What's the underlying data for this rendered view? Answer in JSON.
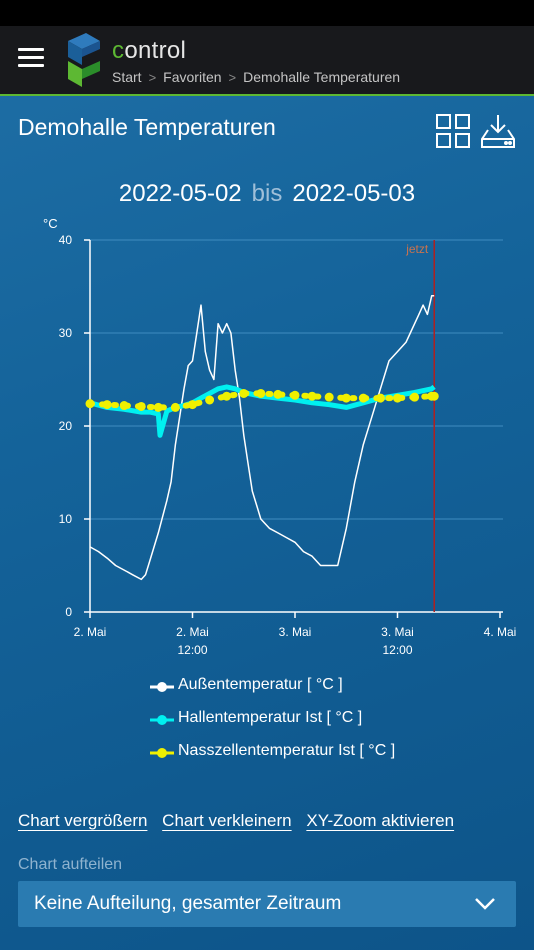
{
  "app": {
    "title_first_letter": "c",
    "title_rest": "ontrol",
    "breadcrumb": [
      "Start",
      "Favoriten",
      "Demohalle Temperaturen"
    ],
    "accent_color": "#5db833"
  },
  "page": {
    "title": "Demohalle Temperaturen",
    "toolbar_icons": [
      "grid-view-icon",
      "download-icon"
    ]
  },
  "date_range": {
    "from": "2022-05-02",
    "separator": "bis",
    "to": "2022-05-03"
  },
  "chart_data": {
    "type": "line",
    "ylabel": "°C",
    "ylim": [
      0,
      40
    ],
    "yticks": [
      "0",
      "10",
      "20",
      "30",
      "40"
    ],
    "x_unit": "hours since 2. Mai 00:00",
    "xlim": [
      0,
      48
    ],
    "xticks": [
      {
        "x": 0,
        "line1": "2. Mai",
        "line2": ""
      },
      {
        "x": 12,
        "line1": "2. Mai",
        "line2": "12:00"
      },
      {
        "x": 24,
        "line1": "3. Mai",
        "line2": ""
      },
      {
        "x": 36,
        "line1": "3. Mai",
        "line2": "12:00"
      },
      {
        "x": 48,
        "line1": "4. Mai",
        "line2": ""
      }
    ],
    "grid": true,
    "now_marker": {
      "x": 40.3,
      "label": "jetzt",
      "color": "#b02020"
    },
    "series": [
      {
        "name": "Außentemperatur [ °C ]",
        "color": "#ffffff",
        "style": "line",
        "x": [
          0,
          1,
          2,
          3,
          4,
          5,
          6,
          6.5,
          7,
          8,
          9,
          9.5,
          10,
          10.5,
          11,
          11.5,
          12,
          12.5,
          13,
          13.5,
          14,
          14.5,
          15,
          15.5,
          16,
          16.5,
          17,
          17.5,
          18,
          18.5,
          19,
          19.5,
          20,
          21,
          22,
          23,
          24,
          25,
          26,
          27,
          28,
          29,
          30,
          31,
          32,
          33,
          34,
          35,
          36,
          37,
          37.5,
          38,
          38.5,
          39,
          39.5,
          40,
          40.3
        ],
        "y": [
          7,
          6.5,
          5.8,
          5,
          4.5,
          4,
          3.5,
          4,
          5.5,
          8.5,
          12,
          14,
          18,
          21,
          24,
          26.5,
          27,
          30,
          33,
          28,
          26,
          25,
          31,
          30,
          31,
          30,
          26,
          23,
          19,
          16,
          13,
          11.5,
          10,
          9,
          8.5,
          8,
          7.5,
          6.5,
          6,
          5,
          5,
          5,
          9,
          14,
          18,
          21,
          24,
          27,
          28,
          29,
          30,
          31,
          32,
          33,
          32,
          34,
          34
        ]
      },
      {
        "name": "Hallentemperatur Ist [ °C ]",
        "color": "#00f0f0",
        "style": "line",
        "x": [
          0,
          2,
          4,
          6,
          7,
          8,
          8.2,
          9,
          10,
          11,
          12,
          13,
          14,
          15,
          16,
          17,
          18,
          20,
          22,
          24,
          26,
          28,
          30,
          32,
          34,
          36,
          38,
          40,
          40.3
        ],
        "y": [
          22.5,
          22,
          21.8,
          21.5,
          21.5,
          21.3,
          19,
          21.6,
          22,
          22.2,
          22.5,
          23,
          23.5,
          24,
          24.2,
          24,
          23.6,
          23.2,
          23,
          22.8,
          22.5,
          22.3,
          22,
          22.5,
          23,
          23.3,
          23.6,
          24,
          24.2
        ]
      },
      {
        "name": "Nasszellentemperatur Ist [ °C ]",
        "color": "#f0f000",
        "style": "dotted",
        "x": [
          0,
          2,
          4,
          6,
          8,
          10,
          12,
          14,
          16,
          18,
          20,
          22,
          24,
          26,
          28,
          30,
          32,
          34,
          36,
          38,
          40,
          40.3
        ],
        "y": [
          22.4,
          22.3,
          22.2,
          22.1,
          22,
          22,
          22.3,
          22.8,
          23.2,
          23.5,
          23.5,
          23.4,
          23.3,
          23.2,
          23.1,
          23,
          23,
          23,
          23,
          23.1,
          23.2,
          23.2
        ]
      }
    ]
  },
  "actions": [
    "Chart vergrößern",
    "Chart verkleinern",
    "XY-Zoom aktivieren"
  ],
  "split": {
    "label": "Chart aufteilen",
    "selected": "Keine Aufteilung, gesamter Zeitraum",
    "icon": "chevron-down-icon"
  }
}
